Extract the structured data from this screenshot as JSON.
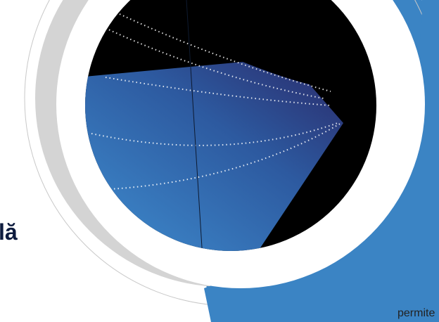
{
  "heading": "lă",
  "body_text": "permite"
}
